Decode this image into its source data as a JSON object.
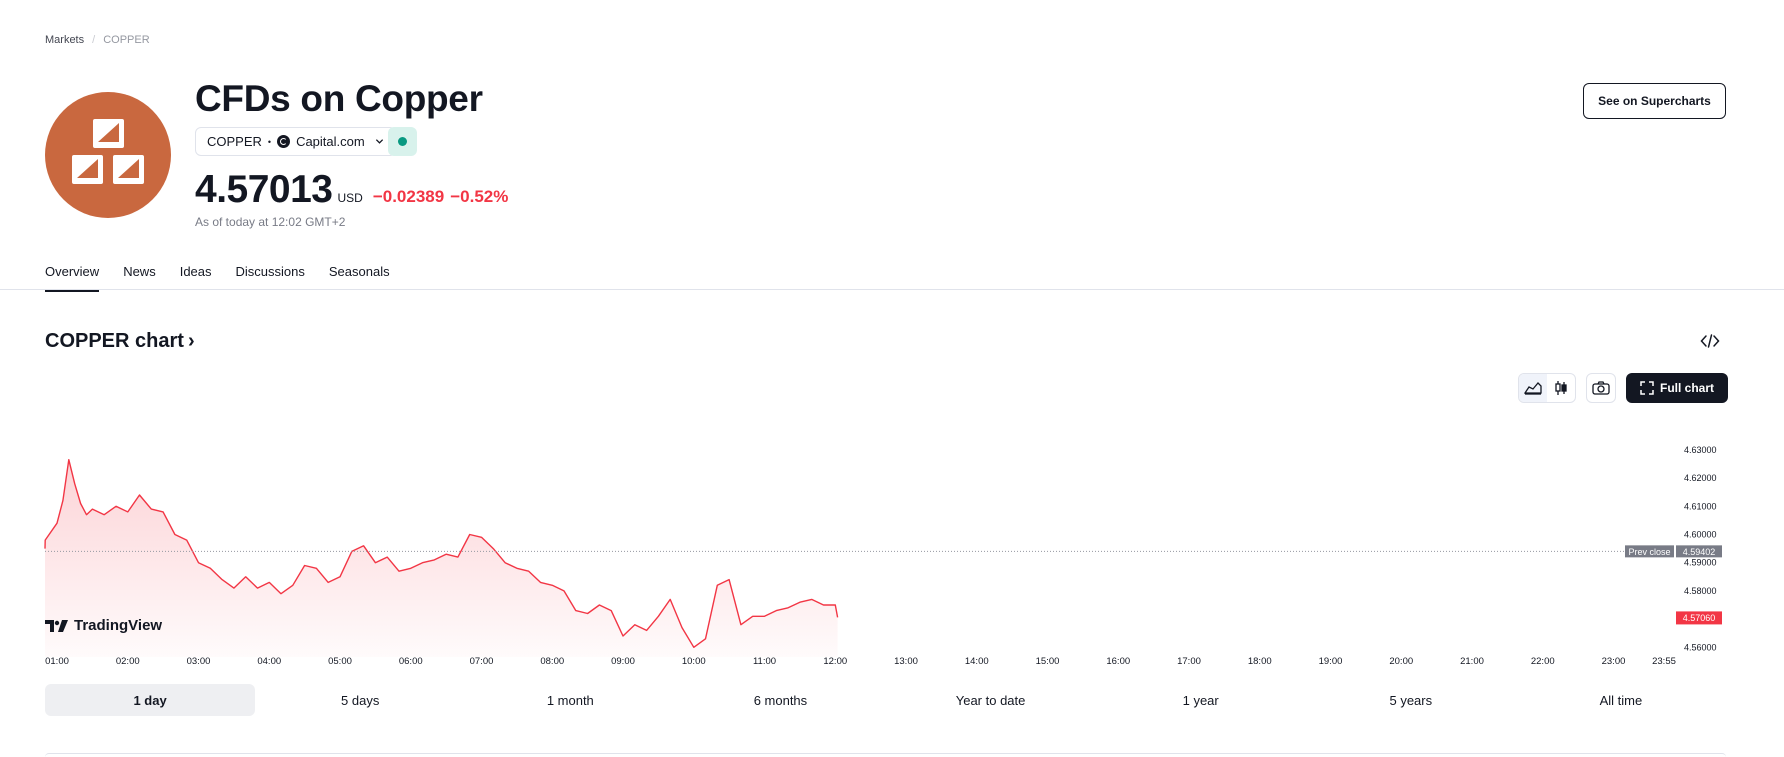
{
  "breadcrumb": {
    "items": [
      "Markets",
      "COPPER"
    ],
    "separator": "/"
  },
  "header": {
    "title": "CFDs on Copper",
    "symbol": "COPPER",
    "dot": "•",
    "exchange": "Capital.com",
    "logo_icon": "copper-bars-icon",
    "logo_color": "#c9683f",
    "market_status_color": "#089981"
  },
  "quote": {
    "price": "4.57013",
    "currency": "USD",
    "change": "−0.02389",
    "change_percent": "−0.52%",
    "as_of": "As of today at 12:02 GMT+2",
    "negative_color": "#f23645"
  },
  "actions": {
    "supercharts_label": "See on Supercharts"
  },
  "tabs": [
    {
      "label": "Overview",
      "active": true
    },
    {
      "label": "News",
      "active": false
    },
    {
      "label": "Ideas",
      "active": false
    },
    {
      "label": "Discussions",
      "active": false
    },
    {
      "label": "Seasonals",
      "active": false
    }
  ],
  "chart_section": {
    "heading": "COPPER chart",
    "heading_chevron": "›",
    "full_chart_label": "Full chart",
    "watermark": "TradingView"
  },
  "chart_data": {
    "type": "area",
    "line_color": "#f23645",
    "x_ticks": [
      "01:00",
      "02:00",
      "03:00",
      "04:00",
      "05:00",
      "06:00",
      "07:00",
      "08:00",
      "09:00",
      "10:00",
      "11:00",
      "12:00",
      "13:00",
      "14:00",
      "15:00",
      "16:00",
      "17:00",
      "18:00",
      "19:00",
      "20:00",
      "21:00",
      "22:00",
      "23:00",
      "23:55"
    ],
    "y_ticks": [
      "4.63000",
      "4.62000",
      "4.61000",
      "4.60000",
      "4.59000",
      "4.58000",
      "4.56000"
    ],
    "y_tick_values": [
      4.63,
      4.62,
      4.61,
      4.6,
      4.59,
      4.58,
      4.56
    ],
    "ylim": [
      4.5555,
      4.6335
    ],
    "x_range": [
      "00:40",
      "23:55"
    ],
    "prev_close": {
      "label": "Prev close",
      "value": "4.59402",
      "numeric": 4.59402
    },
    "last": {
      "value": "4.57060",
      "numeric": 4.5706
    },
    "series": [
      {
        "x": [
          "00:40",
          "00:50",
          "01:00",
          "01:05",
          "01:10",
          "01:15",
          "01:20",
          "01:25",
          "01:30",
          "01:40",
          "01:50",
          "02:00",
          "02:10",
          "02:20",
          "02:30",
          "02:40",
          "02:50",
          "03:00",
          "03:10",
          "03:20",
          "03:30",
          "03:40",
          "03:50",
          "04:00",
          "04:10",
          "04:20",
          "04:30",
          "04:40",
          "04:50",
          "05:00",
          "05:10",
          "05:20",
          "05:30",
          "05:40",
          "05:50",
          "06:00",
          "06:10",
          "06:20",
          "06:30",
          "06:40",
          "06:50",
          "07:00",
          "07:10",
          "07:20",
          "07:30",
          "07:40",
          "07:50",
          "08:00",
          "08:10",
          "08:20",
          "08:30",
          "08:40",
          "08:50",
          "09:00",
          "09:10",
          "09:20",
          "09:30",
          "09:40",
          "09:50",
          "10:00",
          "10:10",
          "10:20",
          "10:30",
          "10:40",
          "10:50",
          "11:00",
          "11:10",
          "11:20",
          "11:30",
          "11:40",
          "11:50",
          "12:00",
          "12:02"
        ],
        "y": [
          4.595,
          4.598,
          4.604,
          4.612,
          4.6265,
          4.618,
          4.611,
          4.607,
          4.609,
          4.607,
          4.61,
          4.608,
          4.614,
          4.609,
          4.608,
          4.6,
          4.598,
          4.59,
          4.588,
          4.584,
          4.581,
          4.585,
          4.581,
          4.583,
          4.579,
          4.582,
          4.589,
          4.588,
          4.583,
          4.585,
          4.594,
          4.596,
          4.59,
          4.592,
          4.587,
          4.588,
          4.59,
          4.591,
          4.593,
          4.592,
          4.6,
          4.599,
          4.595,
          4.59,
          4.588,
          4.587,
          4.583,
          4.582,
          4.58,
          4.573,
          4.572,
          4.575,
          4.573,
          4.564,
          4.568,
          4.566,
          4.571,
          4.577,
          4.567,
          4.56,
          4.563,
          4.582,
          4.584,
          4.568,
          4.571,
          4.571,
          4.573,
          4.574,
          4.576,
          4.577,
          4.575,
          4.575,
          4.5706
        ]
      }
    ]
  },
  "time_ranges": [
    {
      "label": "1 day",
      "active": true
    },
    {
      "label": "5 days",
      "active": false
    },
    {
      "label": "1 month",
      "active": false
    },
    {
      "label": "6 months",
      "active": false
    },
    {
      "label": "Year to date",
      "active": false
    },
    {
      "label": "1 year",
      "active": false
    },
    {
      "label": "5 years",
      "active": false
    },
    {
      "label": "All time",
      "active": false
    }
  ]
}
